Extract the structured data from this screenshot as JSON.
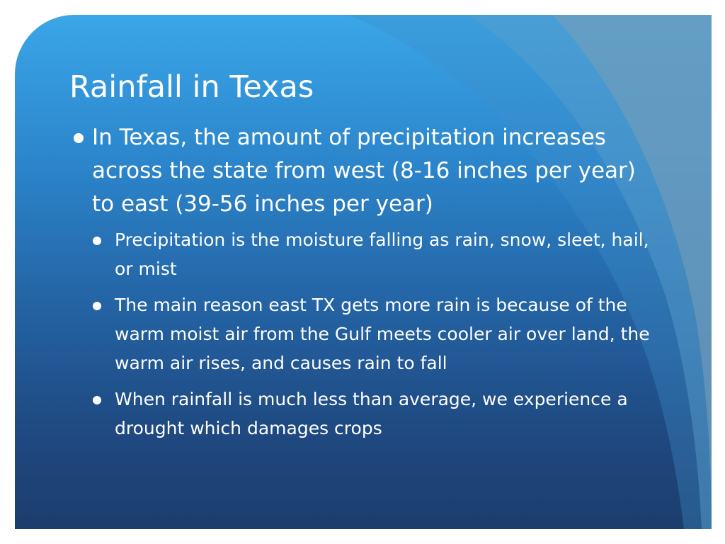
{
  "slide": {
    "title": "Rainfall in Texas",
    "bullets": [
      {
        "text": "In Texas, the amount of precipitation increases across the state from west (8-16 inches per year) to east (39-56 inches per year)",
        "sub": [
          "Precipitation is the moisture falling as rain, snow, sleet, hail, or mist",
          "The main reason east TX gets more rain is because of the warm moist air from the Gulf meets cooler air over land, the warm air rises, and causes rain to fall",
          "When rainfall is much less than average, we experience a drought which damages crops"
        ]
      }
    ]
  },
  "colors": {
    "background_top": "#3aa6e8",
    "background_bottom": "#1c3d6c",
    "text": "#ffffff"
  }
}
